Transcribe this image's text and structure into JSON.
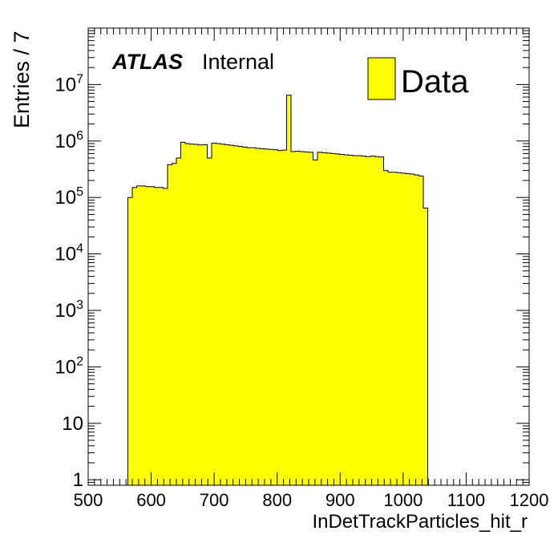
{
  "chart_data": {
    "type": "bar",
    "ylabel": "Entries / 7",
    "xlabel": "InDetTrackParticles_hit_r",
    "x_range": [
      500,
      1200
    ],
    "y_range": [
      0.8,
      100000000
    ],
    "y_scale": "log",
    "bin_width": 7,
    "bin_start": 563,
    "fill_color": "#ffff00",
    "x_tick_values": [
      500,
      600,
      700,
      800,
      900,
      1000,
      1100,
      1200
    ],
    "x_tick_labels": [
      "500",
      "600",
      "700",
      "800",
      "900",
      "1000",
      "1100",
      "1200"
    ],
    "y_ticks": [
      {
        "value": 1,
        "base": "1",
        "exp": ""
      },
      {
        "value": 10,
        "base": "10",
        "exp": ""
      },
      {
        "value": 100,
        "base": "10",
        "exp": "2"
      },
      {
        "value": 1000,
        "base": "10",
        "exp": "3"
      },
      {
        "value": 10000,
        "base": "10",
        "exp": "4"
      },
      {
        "value": 100000,
        "base": "10",
        "exp": "5"
      },
      {
        "value": 1000000,
        "base": "10",
        "exp": "6"
      },
      {
        "value": 10000000,
        "base": "10",
        "exp": "7"
      }
    ],
    "values": [
      100000,
      150000,
      160000,
      160000,
      155000,
      155000,
      150000,
      150000,
      145000,
      380000,
      400000,
      500000,
      950000,
      900000,
      880000,
      870000,
      850000,
      860000,
      500000,
      920000,
      900000,
      880000,
      860000,
      840000,
      820000,
      800000,
      780000,
      760000,
      760000,
      740000,
      730000,
      720000,
      710000,
      700000,
      680000,
      690000,
      6500000,
      650000,
      660000,
      650000,
      640000,
      630000,
      460000,
      630000,
      620000,
      610000,
      600000,
      590000,
      580000,
      570000,
      560000,
      550000,
      550000,
      540000,
      530000,
      540000,
      530000,
      520000,
      300000,
      280000,
      280000,
      275000,
      270000,
      265000,
      260000,
      250000,
      240000,
      65000
    ],
    "atlas_label": "ATLAS",
    "atlas_sub": "Internal",
    "legend": {
      "entries": [
        "Data"
      ],
      "position": "top-right"
    }
  }
}
